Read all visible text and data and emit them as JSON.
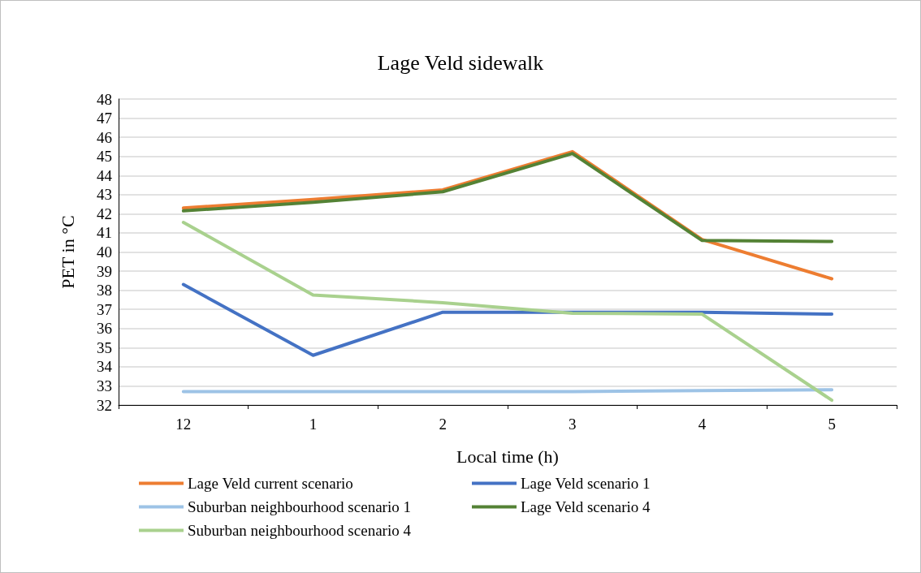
{
  "chart_data": {
    "type": "line",
    "title": "Lage Veld sidewalk",
    "xlabel": "Local time (h)",
    "ylabel": "PET in °C",
    "categories": [
      "12",
      "1",
      "2",
      "3",
      "4",
      "5"
    ],
    "ylim": [
      32,
      48
    ],
    "yticks": [
      32,
      33,
      34,
      35,
      36,
      37,
      38,
      39,
      40,
      41,
      42,
      43,
      44,
      45,
      46,
      47,
      48
    ],
    "grid": "y",
    "legend": "bottom",
    "marker": "none",
    "line_style": "solid",
    "series": [
      {
        "name": "Lage Veld current scenario",
        "color": "#ed7d31",
        "values": [
          42.3,
          42.75,
          43.25,
          45.25,
          40.65,
          38.6
        ]
      },
      {
        "name": "Lage Veld scenario 1",
        "color": "#4472c4",
        "values": [
          38.3,
          34.6,
          36.85,
          36.85,
          36.85,
          36.75
        ]
      },
      {
        "name": "Suburban neighbourhood scenario 1",
        "color": "#9dc3e6",
        "values": [
          32.7,
          32.7,
          32.7,
          32.7,
          32.75,
          32.8
        ]
      },
      {
        "name": "Lage Veld scenario 4",
        "color": "#548235",
        "values": [
          42.15,
          42.6,
          43.15,
          45.15,
          40.6,
          40.55
        ]
      },
      {
        "name": "Suburban neighbourhood scenario 4",
        "color": "#a9d18e",
        "values": [
          41.55,
          37.75,
          37.35,
          36.8,
          36.75,
          32.25
        ]
      }
    ]
  }
}
